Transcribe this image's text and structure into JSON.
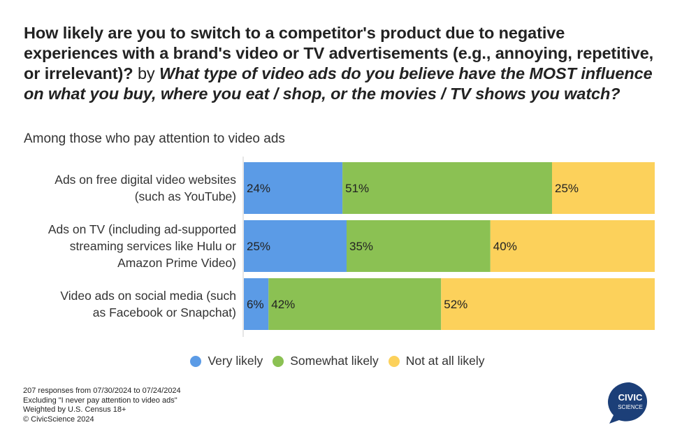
{
  "title": {
    "q1": "How likely are you to switch to a competitor's product due to negative experiences with a brand's video or TV advertisements (e.g., annoying, repetitive, or irrelevant)?",
    "by": " by ",
    "q2": "What type of video ads do you believe have the MOST influence on what you buy, where you eat / shop, or the movies / TV shows you watch?"
  },
  "subtitle": "Among those who pay attention to video ads",
  "chart_data": {
    "type": "bar",
    "orientation": "horizontal",
    "stacked": "100%",
    "categories": [
      [
        "Ads on free digital video websites",
        "(such as YouTube)"
      ],
      [
        "Ads on TV (including ad-supported",
        "streaming services like Hulu or",
        "Amazon Prime Video)"
      ],
      [
        "Video ads on social media (such",
        "as Facebook or Snapchat)"
      ]
    ],
    "series": [
      {
        "name": "Very likely",
        "color": "#5b9be6",
        "values": [
          24,
          25,
          6
        ],
        "labels": [
          "24%",
          "25%",
          "6%"
        ]
      },
      {
        "name": "Somewhat likely",
        "color": "#8bc153",
        "values": [
          51,
          35,
          42
        ],
        "labels": [
          "51%",
          "35%",
          "42%"
        ]
      },
      {
        "name": "Not at all likely",
        "color": "#fcd15b",
        "values": [
          25,
          40,
          52
        ],
        "labels": [
          "25%",
          "40%",
          "52%"
        ]
      }
    ],
    "xlim": [
      0,
      100
    ],
    "legend_position": "bottom"
  },
  "footnote": [
    "207 responses from 07/30/2024 to 07/24/2024",
    "Excluding \"I never pay attention to video ads\"",
    "Weighted by U.S. Census 18+",
    "© CivicScience 2024"
  ],
  "logo": {
    "line1": "CIVIC",
    "line2": "SCIENCE",
    "color": "#1c3f78"
  }
}
